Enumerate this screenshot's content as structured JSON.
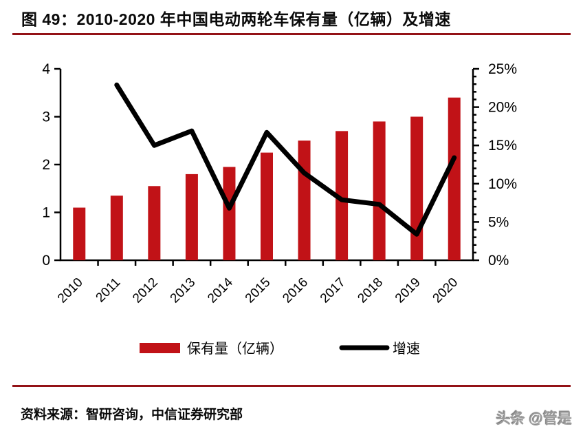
{
  "header": {
    "title": "图 49：2010-2020 年中国电动两轮车保有量（亿辆）及增速"
  },
  "footer": {
    "source": "资料来源：智研咨询，中信证券研究部",
    "watermark": "头条 @管是"
  },
  "colors": {
    "bar_red": "#C11217",
    "line_black": "#000000",
    "rule_dark_red": "#931216",
    "axis_black": "#000000",
    "watermark_gray": "#9a9a9a"
  },
  "chart_data": {
    "type": "bar+line combo",
    "categories": [
      "2010",
      "2011",
      "2012",
      "2013",
      "2014",
      "2015",
      "2016",
      "2017",
      "2018",
      "2019",
      "2020"
    ],
    "series": [
      {
        "name": "保有量（亿辆）",
        "type": "bar",
        "axis": "left",
        "color": "#C11217",
        "values": [
          1.1,
          1.35,
          1.55,
          1.8,
          1.95,
          2.25,
          2.5,
          2.7,
          2.9,
          3.0,
          3.4
        ]
      },
      {
        "name": "增速",
        "type": "line",
        "axis": "right",
        "color": "#000000",
        "values": [
          null,
          22.9,
          15.0,
          16.9,
          6.8,
          16.7,
          11.4,
          7.9,
          7.3,
          3.4,
          13.4
        ]
      }
    ],
    "left_axis": {
      "min": 0,
      "max": 4,
      "tick_labels": [
        "0",
        "1",
        "2",
        "3",
        "4"
      ]
    },
    "right_axis": {
      "min": 0,
      "max": 25,
      "tick_labels": [
        "0%",
        "5%",
        "10%",
        "15%",
        "20%",
        "25%"
      ],
      "major_step": 5,
      "minor_step": 1
    },
    "grid": false,
    "legend_position": "bottom",
    "legend": [
      {
        "label": "保有量（亿辆）",
        "swatch": "bar"
      },
      {
        "label": "增速",
        "swatch": "line"
      }
    ]
  }
}
